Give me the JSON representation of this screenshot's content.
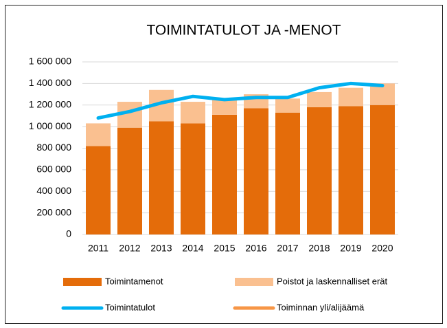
{
  "chart_data": {
    "type": "bar",
    "title": "TOIMINTATULOT  JA -MENOT",
    "categories": [
      "2011",
      "2012",
      "2013",
      "2014",
      "2015",
      "2016",
      "2017",
      "2018",
      "2019",
      "2020"
    ],
    "series": [
      {
        "name": "Toimintamenot",
        "type": "bar",
        "color": "#e46c0a",
        "values": [
          820000,
          990000,
          1050000,
          1030000,
          1110000,
          1170000,
          1130000,
          1180000,
          1190000,
          1200000
        ]
      },
      {
        "name": "Poistot ja laskennalliset erät",
        "type": "bar",
        "color": "#fac090",
        "values": [
          210000,
          240000,
          290000,
          200000,
          140000,
          130000,
          130000,
          140000,
          170000,
          200000
        ]
      },
      {
        "name": "Toimintatulot",
        "type": "line",
        "color": "#00b0f0",
        "values": [
          1080000,
          1140000,
          1220000,
          1280000,
          1250000,
          1270000,
          1270000,
          1360000,
          1400000,
          1380000
        ]
      },
      {
        "name": "Toiminnan yli/alijäämä",
        "type": "line",
        "color": "#f79646",
        "values": [
          null,
          null,
          null,
          null,
          null,
          null,
          null,
          null,
          null,
          null
        ]
      }
    ],
    "ylim": [
      0,
      1600000
    ],
    "yticks": [
      0,
      {
        "value": 200000,
        "label": "200 000"
      },
      {
        "value": 400000,
        "label": "400 000"
      },
      {
        "value": 600000,
        "label": "600 000"
      },
      {
        "value": 800000,
        "label": "800 000"
      },
      {
        "value": 1000000,
        "label": "1 000 000"
      },
      {
        "value": 1200000,
        "label": "1 200 000"
      },
      {
        "value": 1400000,
        "label": "1 400 000"
      },
      {
        "value": 1600000,
        "label": "1 600 000"
      }
    ],
    "grid": true,
    "legend": "bottom"
  }
}
